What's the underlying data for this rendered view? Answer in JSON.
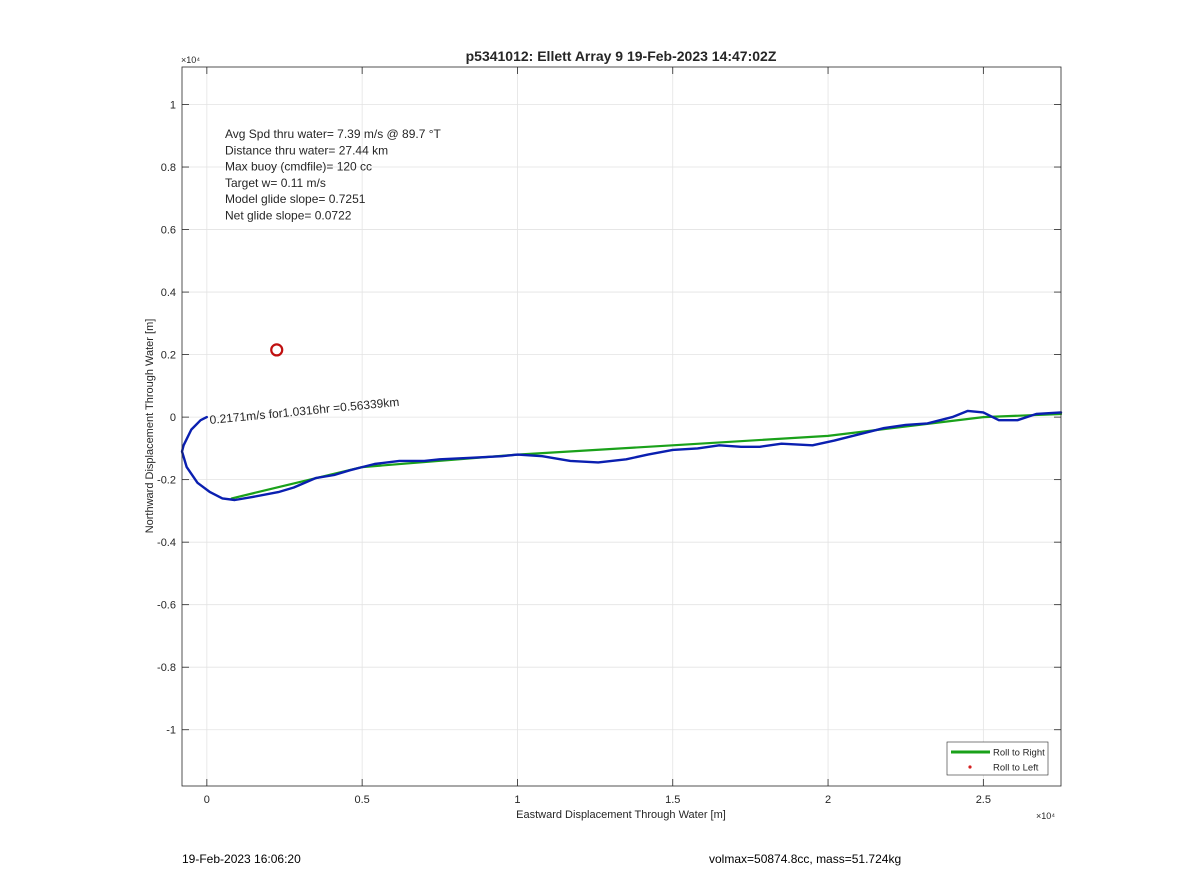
{
  "chart_data": {
    "type": "line",
    "title": "p5341012: Ellett Array 9 19-Feb-2023 14:47:02Z",
    "xlabel": "Eastward Displacement Through Water [m]",
    "ylabel": "Northward Displacement Through Water [m]",
    "x_exponent_label": "×10⁴",
    "y_exponent_label": "×10⁴",
    "xlim": [
      -800,
      27500
    ],
    "ylim": [
      -11800,
      11200
    ],
    "x_ticks": [
      0,
      5000,
      10000,
      15000,
      20000,
      25000
    ],
    "x_tick_labels": [
      "0",
      "0.5",
      "1",
      "1.5",
      "2",
      "2.5"
    ],
    "y_ticks": [
      -10000,
      -8000,
      -6000,
      -4000,
      -2000,
      0,
      2000,
      4000,
      6000,
      8000,
      10000
    ],
    "y_tick_labels": [
      "-1",
      "-0.8",
      "-0.6",
      "-0.4",
      "-0.2",
      "0",
      "0.2",
      "0.4",
      "0.6",
      "0.8",
      "1"
    ],
    "grid": true,
    "legend_position": "bottom-right",
    "legend": [
      {
        "label": "Roll to Right",
        "color": "#1aa11a",
        "marker": "line"
      },
      {
        "label": "Roll to Left",
        "color": "#d42020",
        "marker": "dot"
      }
    ],
    "stats_lines": [
      "Avg Spd thru water=  7.39 m/s @  89.7 °T",
      "Distance thru water= 27.44 km",
      "Max buoy (cmdfile)= 120 cc",
      "Target w= 0.11 m/s",
      "Model glide slope= 0.7251",
      "Net glide slope= 0.0722"
    ],
    "segment_annotation": "0.2171m/s for1.0316hr =0.56339km",
    "series": [
      {
        "name": "Roll to Right",
        "color": "#1aa11a",
        "points": [
          [
            800,
            -2600
          ],
          [
            5000,
            -1600
          ],
          [
            10000,
            -1200
          ],
          [
            15000,
            -900
          ],
          [
            20000,
            -600
          ],
          [
            25000,
            0
          ],
          [
            27500,
            100
          ]
        ]
      },
      {
        "color": "#0a1fb0",
        "points": [
          [
            0,
            0
          ],
          [
            -200,
            -100
          ],
          [
            -500,
            -400
          ],
          [
            -750,
            -900
          ],
          [
            -800,
            -1100
          ],
          [
            -650,
            -1600
          ],
          [
            -300,
            -2100
          ],
          [
            100,
            -2400
          ],
          [
            500,
            -2600
          ],
          [
            900,
            -2650
          ],
          [
            1500,
            -2550
          ],
          [
            2300,
            -2400
          ],
          [
            2800,
            -2250
          ],
          [
            3500,
            -1950
          ],
          [
            4100,
            -1850
          ],
          [
            4600,
            -1700
          ],
          [
            5000,
            -1600
          ],
          [
            5400,
            -1500
          ],
          [
            6200,
            -1400
          ],
          [
            7000,
            -1400
          ],
          [
            7500,
            -1350
          ],
          [
            8500,
            -1300
          ],
          [
            9500,
            -1250
          ],
          [
            10000,
            -1200
          ],
          [
            10800,
            -1250
          ],
          [
            11700,
            -1400
          ],
          [
            12600,
            -1450
          ],
          [
            13500,
            -1350
          ],
          [
            14200,
            -1200
          ],
          [
            15000,
            -1050
          ],
          [
            15800,
            -1000
          ],
          [
            16500,
            -900
          ],
          [
            17200,
            -950
          ],
          [
            17800,
            -950
          ],
          [
            18500,
            -850
          ],
          [
            19500,
            -900
          ],
          [
            20200,
            -750
          ],
          [
            21000,
            -550
          ],
          [
            21800,
            -350
          ],
          [
            22500,
            -250
          ],
          [
            23200,
            -200
          ],
          [
            24000,
            0
          ],
          [
            24500,
            200
          ],
          [
            25000,
            150
          ],
          [
            25500,
            -100
          ],
          [
            26100,
            -100
          ],
          [
            26700,
            100
          ],
          [
            27500,
            150
          ]
        ]
      }
    ],
    "marker_point": [
      2250,
      2150
    ],
    "marker_color": "#c01010"
  },
  "footer": {
    "left": "19-Feb-2023 16:06:20",
    "right": "volmax=50874.8cc, mass=51.724kg"
  }
}
